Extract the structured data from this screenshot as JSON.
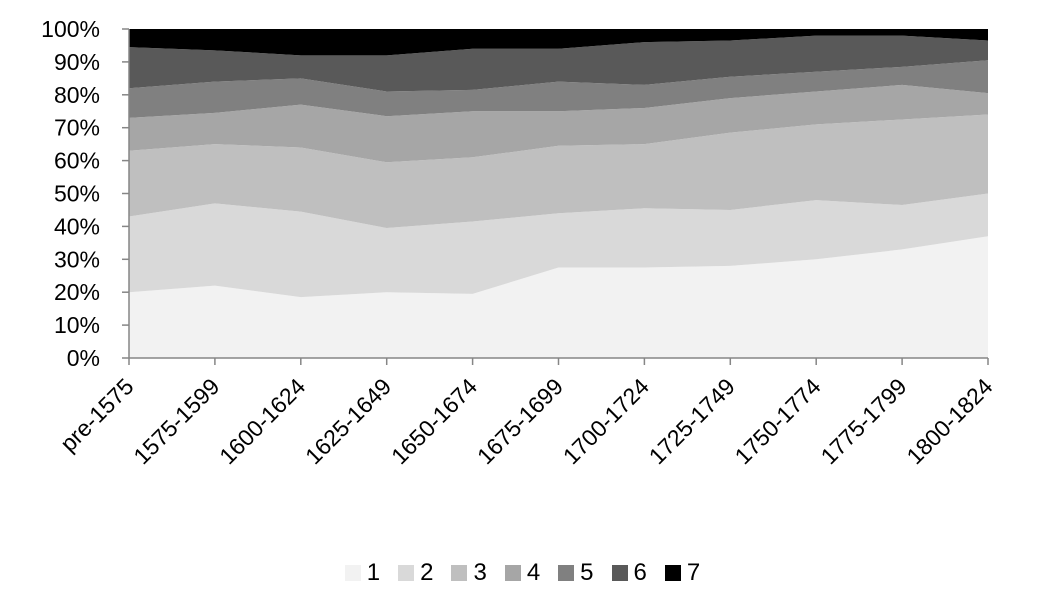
{
  "chart_data": {
    "type": "area",
    "stacked": "percent",
    "categories": [
      "pre-1575",
      "1575-1599",
      "1600-1624",
      "1625-1649",
      "1650-1674",
      "1675-1699",
      "1700-1724",
      "1725-1749",
      "1750-1774",
      "1775-1799",
      "1800-1824"
    ],
    "ylim": [
      0,
      100
    ],
    "yticks": [
      "0%",
      "10%",
      "20%",
      "30%",
      "40%",
      "50%",
      "60%",
      "70%",
      "80%",
      "90%",
      "100%"
    ],
    "grid": false,
    "legend_position": "bottom",
    "series": [
      {
        "name": "1",
        "color": "#f2f2f2",
        "values": [
          20,
          22,
          18.5,
          20,
          19.5,
          27.5,
          27.5,
          28,
          30,
          33,
          37
        ]
      },
      {
        "name": "2",
        "color": "#d9d9d9",
        "values": [
          23,
          25,
          26,
          19.5,
          22,
          16.5,
          18,
          17,
          18,
          13.5,
          13
        ]
      },
      {
        "name": "3",
        "color": "#bfbfbf",
        "values": [
          20,
          18,
          19.5,
          20,
          19.5,
          20.5,
          19.5,
          23.5,
          23,
          26,
          24
        ]
      },
      {
        "name": "4",
        "color": "#a6a6a6",
        "values": [
          10,
          9.5,
          13,
          14,
          14,
          10.5,
          11,
          10.5,
          10,
          10.5,
          6.5
        ]
      },
      {
        "name": "5",
        "color": "#808080",
        "values": [
          9,
          9.5,
          8,
          7.5,
          6.5,
          9,
          7,
          6.5,
          6,
          5.5,
          10
        ]
      },
      {
        "name": "6",
        "color": "#595959",
        "values": [
          12.5,
          9.5,
          7,
          11,
          12.5,
          10,
          13,
          11,
          11,
          9.5,
          6
        ]
      },
      {
        "name": "7",
        "color": "#000000",
        "values": [
          5.5,
          6.5,
          8,
          8,
          6,
          6,
          4,
          3.5,
          2,
          2,
          3.5
        ]
      }
    ]
  }
}
